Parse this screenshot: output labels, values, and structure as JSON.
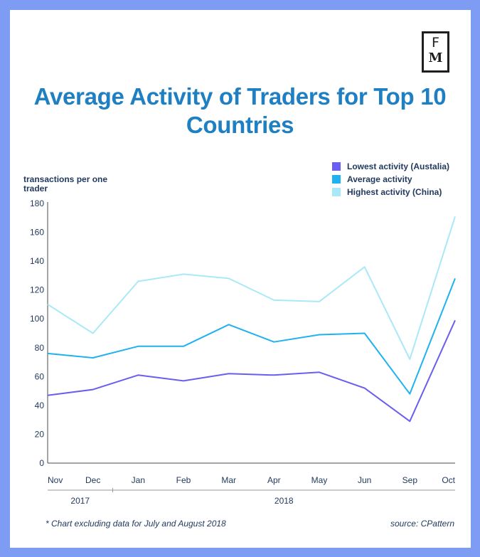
{
  "logo": {
    "top": "F",
    "bottom": "M"
  },
  "chart_data": {
    "type": "line",
    "title": "Average Activity of Traders for Top 10 Countries",
    "ylabel": "transactions per one trader",
    "xlabel": "",
    "categories": [
      "Nov",
      "Dec",
      "Jan",
      "Feb",
      "Mar",
      "Apr",
      "May",
      "Jun",
      "Sep",
      "Oct"
    ],
    "x_positions": [
      0,
      1,
      2,
      3,
      4,
      5,
      6,
      7,
      8,
      9
    ],
    "year_labels": [
      "2017",
      "2018"
    ],
    "ylim": [
      0,
      180
    ],
    "yticks": [
      "0",
      "20",
      "40",
      "60",
      "80",
      "100",
      "120",
      "140",
      "160",
      "180"
    ],
    "grid": false,
    "legend_position": "top-right",
    "series": [
      {
        "name": "Lowest activity (Austalia)",
        "color": "#6a5ef0",
        "values": [
          47,
          51,
          61,
          57,
          62,
          61,
          63,
          52,
          29,
          99
        ]
      },
      {
        "name": "Average activity",
        "color": "#1fb2ef",
        "values": [
          76,
          73,
          81,
          81,
          96,
          84,
          89,
          90,
          48,
          128
        ]
      },
      {
        "name": "Highest activity (China)",
        "color": "#a9e9f7",
        "values": [
          110,
          90,
          126,
          131,
          128,
          113,
          112,
          136,
          72,
          171
        ]
      }
    ],
    "footnote": "* Chart excluding data for July and August 2018",
    "source": "source: CPattern"
  }
}
